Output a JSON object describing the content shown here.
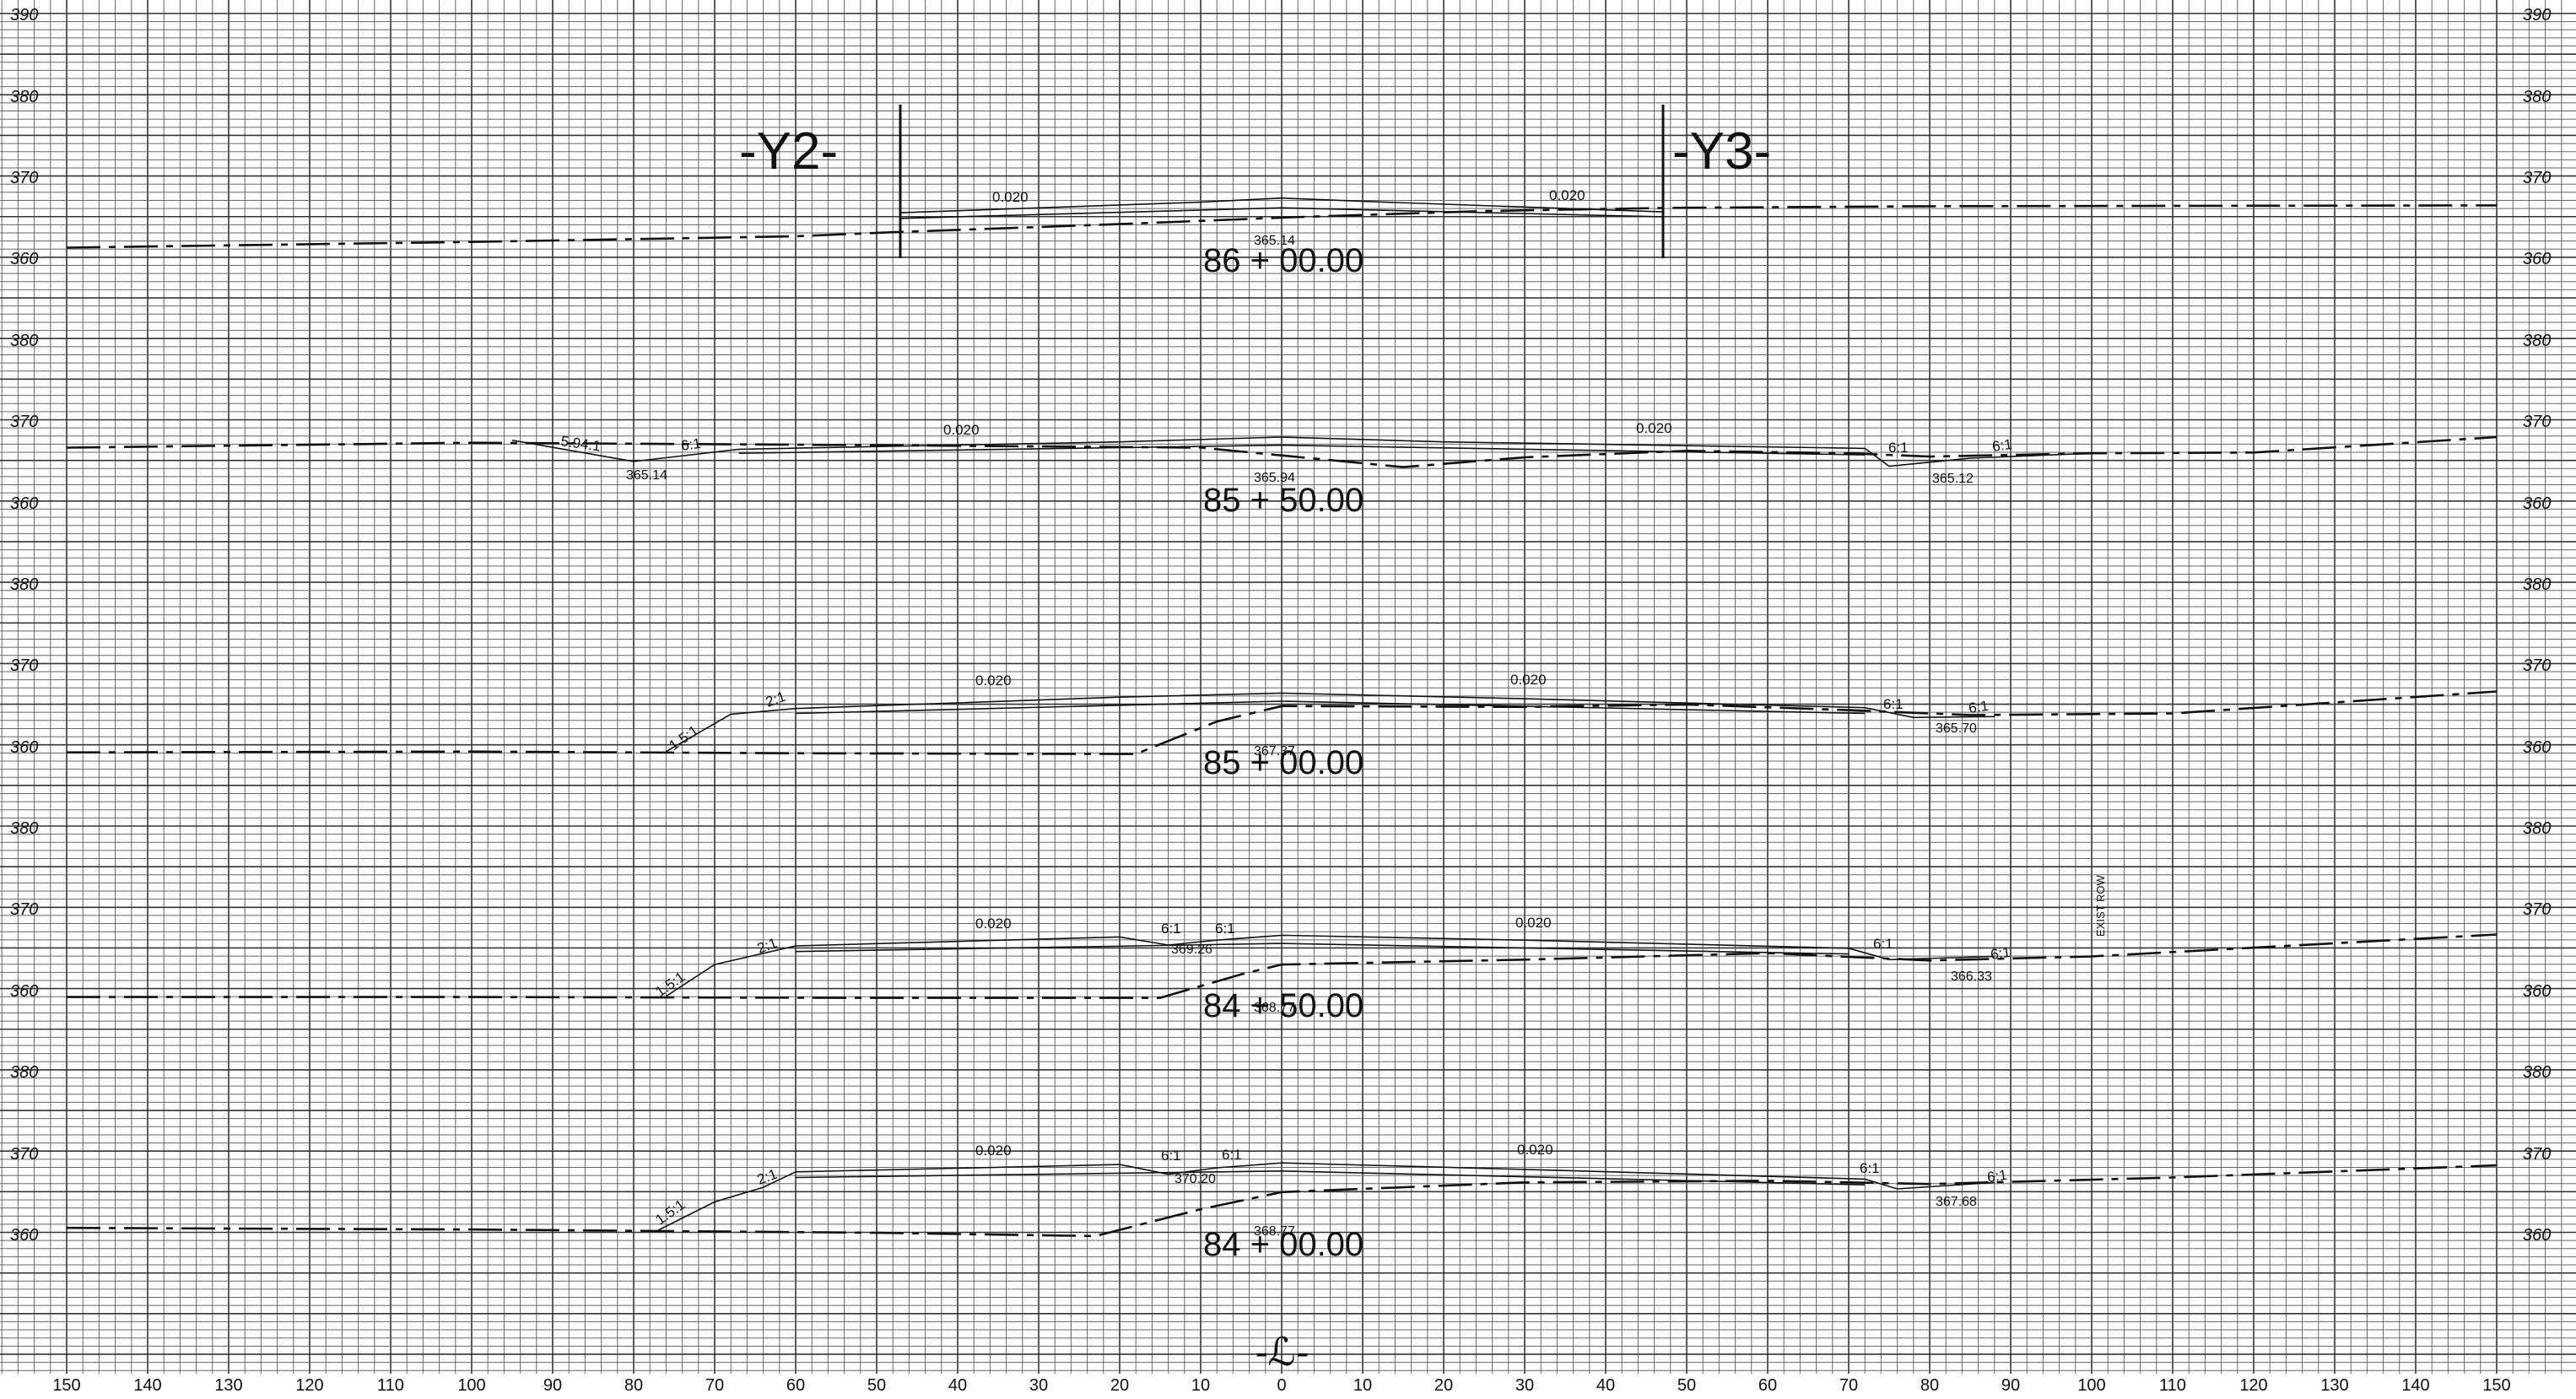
{
  "sheet": {
    "offset_ticks": [
      "150",
      "140",
      "130",
      "120",
      "110",
      "100",
      "90",
      "80",
      "70",
      "60",
      "50",
      "40",
      "30",
      "20",
      "10",
      "0",
      "10",
      "20",
      "30",
      "40",
      "50",
      "60",
      "70",
      "80",
      "90",
      "100",
      "110",
      "120",
      "130",
      "140",
      "150"
    ],
    "centerline_label": "-ℒ-"
  },
  "sections": [
    {
      "station": "86 + 00.00",
      "elevation_labels": [
        "390",
        "380",
        "370",
        "360"
      ],
      "slope_labels": [
        "0.020",
        "0.020"
      ],
      "spot_labels": [
        "365.14"
      ],
      "alignment_labels": [
        "-Y2-",
        "-Y3-"
      ],
      "notes": []
    },
    {
      "station": "85 + 50.00",
      "elevation_labels": [
        "380",
        "370",
        "360"
      ],
      "slope_labels": [
        "5.94:1",
        "6:1",
        "0.020",
        "0.020",
        "6:1",
        "6:1"
      ],
      "spot_labels": [
        "365.14",
        "365.94",
        "365.12"
      ],
      "alignment_labels": [],
      "notes": []
    },
    {
      "station": "85 + 00.00",
      "elevation_labels": [
        "380",
        "370",
        "360"
      ],
      "slope_labels": [
        "1.5:1",
        "2:1",
        "0.020",
        "0.020",
        "6:1",
        "6:1"
      ],
      "spot_labels": [
        "367.37",
        "365.70"
      ],
      "alignment_labels": [],
      "notes": []
    },
    {
      "station": "84 + 50.00",
      "elevation_labels": [
        "380",
        "370",
        "360"
      ],
      "slope_labels": [
        "1.5:1",
        "2:1",
        "0.020",
        "6:1",
        "6:1",
        "0.020",
        "6:1",
        "6:1"
      ],
      "spot_labels": [
        "369.26",
        "368.77",
        "366.33"
      ],
      "alignment_labels": [],
      "notes": [
        "EXIST ROW"
      ]
    },
    {
      "station": "84 + 00.00",
      "elevation_labels": [
        "380",
        "370",
        "360"
      ],
      "slope_labels": [
        "1.5:1",
        "2:1",
        "0.020",
        "6:1",
        "6:1",
        "0.020",
        "6:1",
        "6:1"
      ],
      "spot_labels": [
        "370.20",
        "368.77",
        "367.68"
      ],
      "alignment_labels": [],
      "notes": []
    }
  ],
  "chart_data": {
    "type": "line",
    "x_range": [
      -150,
      150
    ],
    "x_ticks": [
      -150,
      -140,
      -130,
      -120,
      -110,
      -100,
      -90,
      -80,
      -70,
      -60,
      -50,
      -40,
      -30,
      -20,
      -10,
      0,
      10,
      20,
      30,
      40,
      50,
      60,
      70,
      80,
      90,
      100,
      110,
      120,
      130,
      140,
      150
    ],
    "panels": [
      {
        "station": "86 + 00.00",
        "y_range": [
          357.5,
          390
        ],
        "existing_ground": [
          [
            -150,
            361.3
          ],
          [
            -100,
            362.0
          ],
          [
            -60,
            362.7
          ],
          [
            -48,
            363.2
          ],
          [
            -20,
            364.2
          ],
          [
            0,
            365.0
          ],
          [
            25,
            365.8
          ],
          [
            48,
            366.2
          ],
          [
            80,
            366.4
          ],
          [
            150,
            366.5
          ]
        ],
        "design_top": [
          [
            -47,
            365.6
          ],
          [
            -10,
            366.9
          ],
          [
            0,
            367.4
          ],
          [
            10,
            367.0
          ],
          [
            47,
            365.7
          ]
        ],
        "design_sub": [
          [
            -47,
            364.9
          ],
          [
            0,
            366.2
          ],
          [
            47,
            365.1
          ]
        ]
      },
      {
        "station": "85 + 50.00",
        "y_range": [
          357.5,
          380
        ],
        "existing_ground": [
          [
            -150,
            366.7
          ],
          [
            -100,
            367.3
          ],
          [
            -50,
            367.0
          ],
          [
            -10,
            366.7
          ],
          [
            15,
            364.3
          ],
          [
            30,
            365.5
          ],
          [
            50,
            366.3
          ],
          [
            70,
            366.0
          ],
          [
            80,
            365.6
          ],
          [
            100,
            366.0
          ],
          [
            120,
            366.1
          ],
          [
            150,
            368.0
          ]
        ],
        "design_top": [
          [
            -95,
            367.6
          ],
          [
            -80,
            365.0
          ],
          [
            -67,
            366.5
          ],
          [
            -20,
            367.4
          ],
          [
            0,
            368.0
          ],
          [
            20,
            367.4
          ],
          [
            72,
            366.6
          ],
          [
            75,
            364.4
          ],
          [
            85,
            365.4
          ],
          [
            100,
            366.0
          ]
        ],
        "design_sub": [
          [
            -67,
            366.0
          ],
          [
            0,
            367.0
          ],
          [
            72,
            365.8
          ]
        ]
      },
      {
        "station": "85 + 00.00",
        "y_range": [
          357.5,
          380
        ],
        "existing_ground": [
          [
            -150,
            359.2
          ],
          [
            -100,
            359.3
          ],
          [
            -60,
            359.1
          ],
          [
            -18,
            359.0
          ],
          [
            -8,
            363.0
          ],
          [
            0,
            364.9
          ],
          [
            30,
            364.8
          ],
          [
            50,
            365.1
          ],
          [
            70,
            364.4
          ],
          [
            85,
            363.8
          ],
          [
            110,
            364.0
          ],
          [
            150,
            366.7
          ]
        ],
        "design_top": [
          [
            -76,
            359.3
          ],
          [
            -68,
            363.9
          ],
          [
            -60,
            364.6
          ],
          [
            -20,
            366.0
          ],
          [
            0,
            366.5
          ],
          [
            30,
            365.8
          ],
          [
            72,
            364.7
          ],
          [
            78,
            363.5
          ],
          [
            88,
            363.6
          ]
        ],
        "design_sub": [
          [
            -60,
            364.0
          ],
          [
            0,
            365.5
          ],
          [
            72,
            364.0
          ]
        ]
      },
      {
        "station": "84 + 50.00",
        "y_range": [
          357.5,
          380
        ],
        "existing_ground": [
          [
            -150,
            359.0
          ],
          [
            -100,
            359.0
          ],
          [
            -50,
            358.9
          ],
          [
            -15,
            358.9
          ],
          [
            -5,
            361.8
          ],
          [
            0,
            363.0
          ],
          [
            30,
            363.6
          ],
          [
            60,
            364.4
          ],
          [
            80,
            363.5
          ],
          [
            100,
            364.0
          ],
          [
            150,
            366.7
          ]
        ],
        "design_top": [
          [
            -76,
            359.1
          ],
          [
            -70,
            363.0
          ],
          [
            -60,
            365.3
          ],
          [
            -20,
            366.4
          ],
          [
            -14,
            365.4
          ],
          [
            -8,
            366.0
          ],
          [
            0,
            366.6
          ],
          [
            30,
            366.0
          ],
          [
            70,
            365.0
          ],
          [
            75,
            363.6
          ],
          [
            88,
            364.0
          ]
        ],
        "design_sub": [
          [
            -60,
            364.6
          ],
          [
            0,
            365.6
          ],
          [
            70,
            364.3
          ]
        ]
      },
      {
        "station": "84 + 00.00",
        "y_range": [
          357.5,
          380
        ],
        "existing_ground": [
          [
            -150,
            360.6
          ],
          [
            -100,
            360.4
          ],
          [
            -50,
            360.0
          ],
          [
            -23,
            359.6
          ],
          [
            -10,
            362.9
          ],
          [
            0,
            365.0
          ],
          [
            30,
            366.2
          ],
          [
            60,
            366.4
          ],
          [
            80,
            366.0
          ],
          [
            110,
            366.8
          ],
          [
            150,
            368.3
          ]
        ],
        "design_top": [
          [
            -77,
            360.3
          ],
          [
            -70,
            363.8
          ],
          [
            -64,
            365.6
          ],
          [
            -60,
            367.5
          ],
          [
            -20,
            368.4
          ],
          [
            -14,
            367.2
          ],
          [
            -8,
            368.0
          ],
          [
            0,
            368.6
          ],
          [
            30,
            367.8
          ],
          [
            72,
            366.6
          ],
          [
            76,
            365.4
          ],
          [
            88,
            366.2
          ]
        ],
        "design_sub": [
          [
            -60,
            366.8
          ],
          [
            0,
            367.6
          ],
          [
            72,
            365.9
          ]
        ]
      }
    ]
  }
}
